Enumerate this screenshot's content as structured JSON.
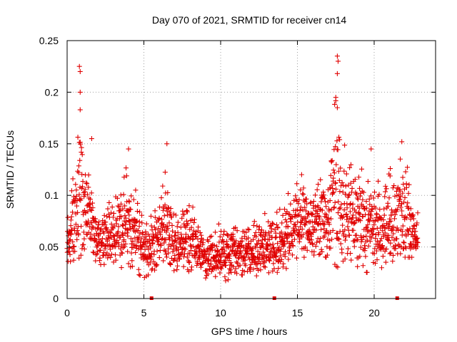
{
  "chart_data": {
    "type": "scatter",
    "title": "Day 070 of 2021, SRMTID for receiver cn14",
    "xlabel": "GPS time / hours",
    "ylabel": "SRMTID / TECUs",
    "xlim": [
      0,
      24
    ],
    "ylim": [
      0,
      0.25
    ],
    "xticks": [
      0,
      5,
      10,
      15,
      20
    ],
    "yticks": [
      0,
      0.05,
      0.1,
      0.15,
      0.2,
      0.25
    ],
    "grid": true,
    "marker": "plus",
    "color": "#e00000",
    "axis_markers_x": [
      5.5,
      13.5,
      21.5
    ],
    "envelope": [
      {
        "t": 0.0,
        "low": 0.035,
        "high": 0.09
      },
      {
        "t": 0.5,
        "low": 0.03,
        "high": 0.14
      },
      {
        "t": 0.8,
        "low": 0.04,
        "high": 0.22
      },
      {
        "t": 1.3,
        "low": 0.05,
        "high": 0.15
      },
      {
        "t": 2.0,
        "low": 0.03,
        "high": 0.09
      },
      {
        "t": 3.0,
        "low": 0.03,
        "high": 0.12
      },
      {
        "t": 4.0,
        "low": 0.03,
        "high": 0.13
      },
      {
        "t": 5.0,
        "low": 0.02,
        "high": 0.09
      },
      {
        "t": 6.0,
        "low": 0.03,
        "high": 0.1
      },
      {
        "t": 6.5,
        "low": 0.04,
        "high": 0.15
      },
      {
        "t": 7.0,
        "low": 0.025,
        "high": 0.08
      },
      {
        "t": 8.0,
        "low": 0.025,
        "high": 0.11
      },
      {
        "t": 9.0,
        "low": 0.02,
        "high": 0.07
      },
      {
        "t": 10.0,
        "low": 0.015,
        "high": 0.075
      },
      {
        "t": 11.0,
        "low": 0.02,
        "high": 0.08
      },
      {
        "t": 12.0,
        "low": 0.02,
        "high": 0.08
      },
      {
        "t": 13.0,
        "low": 0.025,
        "high": 0.09
      },
      {
        "t": 14.0,
        "low": 0.025,
        "high": 0.09
      },
      {
        "t": 15.0,
        "low": 0.04,
        "high": 0.13
      },
      {
        "t": 16.0,
        "low": 0.04,
        "high": 0.12
      },
      {
        "t": 17.0,
        "low": 0.04,
        "high": 0.13
      },
      {
        "t": 17.6,
        "low": 0.03,
        "high": 0.23
      },
      {
        "t": 18.2,
        "low": 0.04,
        "high": 0.15
      },
      {
        "t": 19.0,
        "low": 0.025,
        "high": 0.14
      },
      {
        "t": 20.0,
        "low": 0.025,
        "high": 0.14
      },
      {
        "t": 21.0,
        "low": 0.035,
        "high": 0.13
      },
      {
        "t": 21.8,
        "low": 0.04,
        "high": 0.15
      },
      {
        "t": 22.8,
        "low": 0.04,
        "high": 0.09
      }
    ],
    "peaks": [
      {
        "t": 0.8,
        "y": 0.225
      },
      {
        "t": 0.85,
        "y": 0.22
      },
      {
        "t": 0.85,
        "y": 0.2
      },
      {
        "t": 0.85,
        "y": 0.183
      },
      {
        "t": 17.6,
        "y": 0.235
      },
      {
        "t": 17.65,
        "y": 0.23
      },
      {
        "t": 17.6,
        "y": 0.218
      },
      {
        "t": 17.5,
        "y": 0.195
      },
      {
        "t": 17.6,
        "y": 0.185
      },
      {
        "t": 6.5,
        "y": 0.15
      },
      {
        "t": 21.8,
        "y": 0.152
      },
      {
        "t": 19.8,
        "y": 0.145
      },
      {
        "t": 4.0,
        "y": 0.145
      },
      {
        "t": 1.6,
        "y": 0.155
      }
    ],
    "sampling": {
      "start": 0.0,
      "end": 22.85,
      "step": 0.0125
    }
  }
}
